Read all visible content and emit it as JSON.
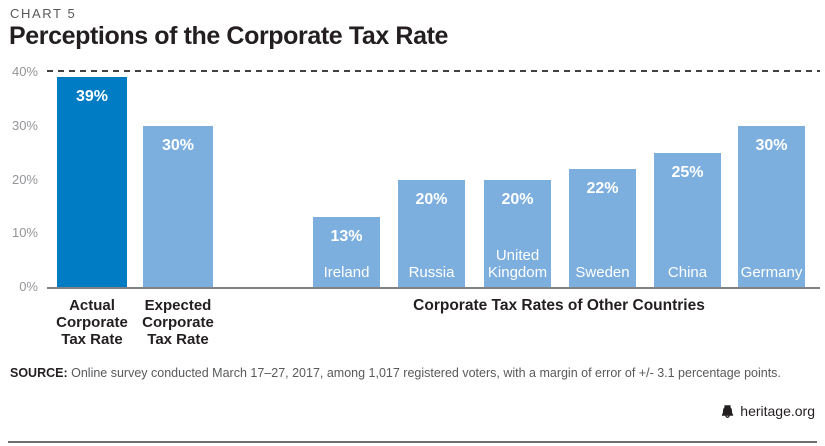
{
  "header": {
    "kicker": "CHART 5",
    "title": "Perceptions of the Corporate Tax Rate"
  },
  "chart_data": {
    "type": "bar",
    "title": "Perceptions of the Corporate Tax Rate",
    "ylim": [
      0,
      40
    ],
    "yticks": [
      "0%",
      "10%",
      "20%",
      "30%",
      "40%"
    ],
    "grid": "no gridlines; dashed reference line at 40%; solid baseline at 0%",
    "legend": "none",
    "bars": [
      {
        "name": "actual",
        "value": 39,
        "value_label": "39%",
        "color": "dark",
        "caption": "Actual\nCorporate\nTax Rate"
      },
      {
        "name": "expected",
        "value": 30,
        "value_label": "30%",
        "color": "light",
        "caption": "Expected\nCorporate\nTax Rate"
      },
      {
        "name": "ireland",
        "value": 13,
        "value_label": "13%",
        "color": "light",
        "inner_label": "Ireland"
      },
      {
        "name": "russia",
        "value": 20,
        "value_label": "20%",
        "color": "light",
        "inner_label": "Russia"
      },
      {
        "name": "united-kingdom",
        "value": 20,
        "value_label": "20%",
        "color": "light",
        "inner_label": "United Kingdom"
      },
      {
        "name": "sweden",
        "value": 22,
        "value_label": "22%",
        "color": "light",
        "inner_label": "Sweden"
      },
      {
        "name": "china",
        "value": 25,
        "value_label": "25%",
        "color": "light",
        "inner_label": "China"
      },
      {
        "name": "germany",
        "value": 30,
        "value_label": "30%",
        "color": "light",
        "inner_label": "Germany"
      }
    ],
    "group_label": "Corporate Tax Rates of Other Countries"
  },
  "colors": {
    "bar_dark": "#007cc5",
    "bar_light": "#7caede",
    "dashed_line": "#414042",
    "baseline": "#808285",
    "axis_text": "#939598",
    "text_dark": "#231f20",
    "text_gray": "#58595b"
  },
  "footer": {
    "source_label": "SOURCE:",
    "source_text": " Online survey conducted March 17–27, 2017, among 1,017 registered voters, with a margin of error of +/- 3.1 percentage points.",
    "brand": "heritage.org",
    "brand_icon": "liberty-bell-icon"
  }
}
